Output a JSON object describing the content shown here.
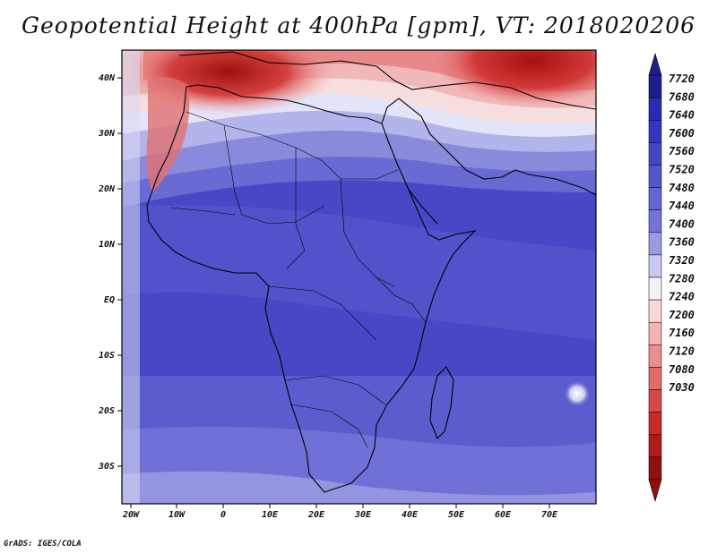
{
  "title": "Geopotential Height at 400hPa [gpm], VT: 2018020206",
  "footer": "GrADS: IGES/COLA",
  "map": {
    "lat_labels": [
      "40N",
      "30N",
      "20N",
      "10N",
      "EQ",
      "10S",
      "20S",
      "30S"
    ],
    "lon_labels": [
      "20W",
      "10W",
      "0",
      "10E",
      "20E",
      "30E",
      "40E",
      "50E",
      "60E",
      "70E"
    ]
  },
  "colorbar": {
    "levels": [
      "7720",
      "7680",
      "7640",
      "7600",
      "7560",
      "7520",
      "7480",
      "7440",
      "7400",
      "7360",
      "7320",
      "7280",
      "7240",
      "7200",
      "7160",
      "7120",
      "7080",
      "7030"
    ],
    "colors": [
      "#1e1e8c",
      "#2a2ab4",
      "#3535c2",
      "#4545c8",
      "#5555cc",
      "#6464d2",
      "#7474d8",
      "#9a9ae2",
      "#c8c8f0",
      "#f4f0f4",
      "#f8d8d8",
      "#f2b4b4",
      "#ea8e8e",
      "#e26a6a",
      "#d84848",
      "#c82a2a",
      "#b01a1a",
      "#901010"
    ]
  }
}
